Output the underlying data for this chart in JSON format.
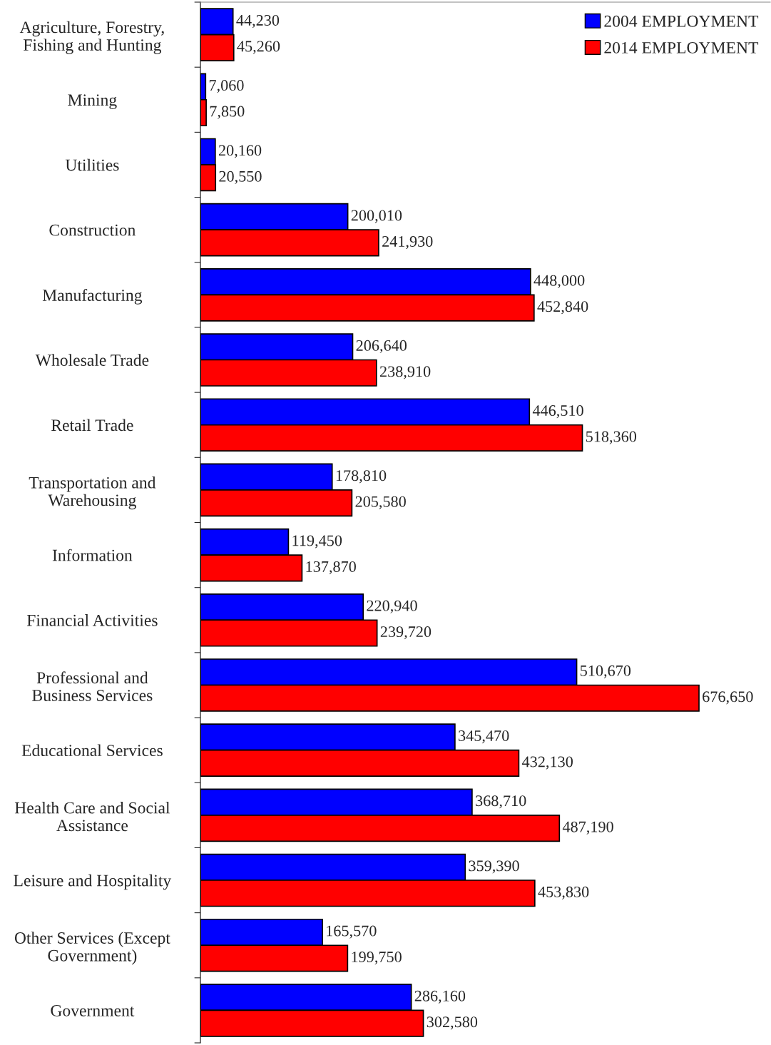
{
  "chart_data": {
    "type": "bar",
    "orientation": "horizontal",
    "legend": "top right",
    "grid": false,
    "categories": [
      "Agriculture, Forestry,\nFishing and Hunting",
      "Mining",
      "Utilities",
      "Construction",
      "Manufacturing",
      "Wholesale Trade",
      "Retail Trade",
      "Transportation and\nWarehousing",
      "Information",
      "Financial Activities",
      "Professional and\nBusiness Services",
      "Educational Services",
      "Health Care and Social\nAssistance",
      "Leisure and Hospitality",
      "Other Services (Except\nGovernment)",
      "Government"
    ],
    "series": [
      {
        "name": "2004 EMPLOYMENT",
        "color": "#0000ff",
        "values": [
          44230,
          7060,
          20160,
          200010,
          448000,
          206640,
          446510,
          178810,
          119450,
          220940,
          510670,
          345470,
          368710,
          359390,
          165570,
          286160
        ],
        "value_labels": [
          "44,230",
          "7,060",
          "20,160",
          "200,010",
          "448,000",
          "206,640",
          "446,510",
          "178,810",
          "119,450",
          "220,940",
          "510,670",
          "345,470",
          "368,710",
          "359,390",
          "165,570",
          "286,160"
        ]
      },
      {
        "name": "2014 EMPLOYMENT",
        "color": "#ff0000",
        "values": [
          45260,
          7850,
          20550,
          241930,
          452840,
          238910,
          518360,
          205580,
          137870,
          239720,
          676650,
          432130,
          487190,
          453830,
          199750,
          302580
        ],
        "value_labels": [
          "45,260",
          "7,850",
          "20,550",
          "241,930",
          "452,840",
          "238,910",
          "518,360",
          "205,580",
          "137,870",
          "239,720",
          "676,650",
          "432,130",
          "487,190",
          "453,830",
          "199,750",
          "302,580"
        ]
      }
    ]
  }
}
